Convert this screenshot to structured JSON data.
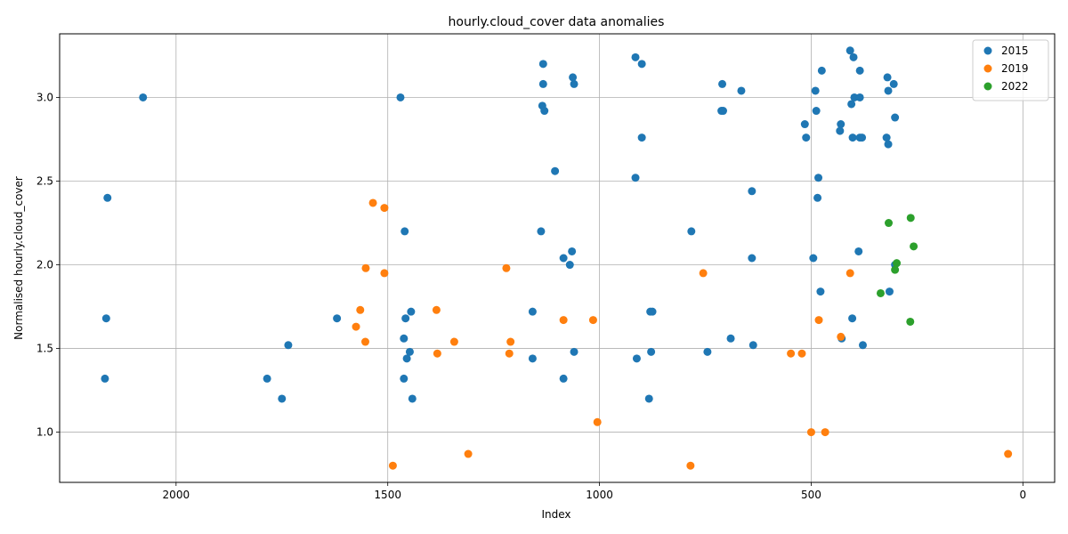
{
  "chart_data": {
    "type": "scatter",
    "title": "hourly.cloud_cover data anomalies",
    "xlabel": "Index",
    "ylabel": "Normalised hourly.cloud_cover",
    "x_inverted": true,
    "xlim": [
      2275,
      -75
    ],
    "ylim": [
      0.7,
      3.38
    ],
    "xticks": [
      2000,
      1500,
      1000,
      500,
      0
    ],
    "yticks": [
      1.0,
      1.5,
      2.0,
      2.5,
      3.0
    ],
    "ytick_labels": [
      "1.0",
      "1.5",
      "2.0",
      "2.5",
      "3.0"
    ],
    "grid": true,
    "legend_position": "top-right",
    "series": [
      {
        "name": "2015",
        "color": "#1f77b4",
        "points": [
          [
            2078,
            3.0
          ],
          [
            2162,
            2.4
          ],
          [
            2165,
            1.68
          ],
          [
            2168,
            1.32
          ],
          [
            1785,
            1.32
          ],
          [
            1750,
            1.2
          ],
          [
            1735,
            1.52
          ],
          [
            1620,
            1.68
          ],
          [
            1470,
            3.0
          ],
          [
            1460,
            2.2
          ],
          [
            1462,
            1.56
          ],
          [
            1458,
            1.68
          ],
          [
            1455,
            1.44
          ],
          [
            1448,
            1.48
          ],
          [
            1445,
            1.72
          ],
          [
            1442,
            1.2
          ],
          [
            1462,
            1.32
          ],
          [
            1133,
            3.2
          ],
          [
            1133,
            3.08
          ],
          [
            1135,
            2.95
          ],
          [
            1130,
            2.92
          ],
          [
            1105,
            2.56
          ],
          [
            1138,
            2.2
          ],
          [
            1063,
            3.12
          ],
          [
            1060,
            3.08
          ],
          [
            1065,
            2.08
          ],
          [
            1085,
            2.04
          ],
          [
            1070,
            2.0
          ],
          [
            1158,
            1.72
          ],
          [
            1158,
            1.44
          ],
          [
            1060,
            1.48
          ],
          [
            1085,
            1.32
          ],
          [
            915,
            3.24
          ],
          [
            900,
            3.2
          ],
          [
            900,
            2.76
          ],
          [
            915,
            2.52
          ],
          [
            875,
            1.72
          ],
          [
            880,
            1.72
          ],
          [
            878,
            1.48
          ],
          [
            912,
            1.44
          ],
          [
            883,
            1.2
          ],
          [
            783,
            2.2
          ],
          [
            745,
            1.48
          ],
          [
            710,
            3.08
          ],
          [
            712,
            2.92
          ],
          [
            708,
            2.92
          ],
          [
            665,
            3.04
          ],
          [
            690,
            1.56
          ],
          [
            640,
            2.44
          ],
          [
            640,
            2.04
          ],
          [
            637,
            1.52
          ],
          [
            408,
            3.28
          ],
          [
            400,
            3.24
          ],
          [
            385,
            3.16
          ],
          [
            475,
            3.16
          ],
          [
            490,
            3.04
          ],
          [
            320,
            3.12
          ],
          [
            318,
            3.04
          ],
          [
            305,
            3.08
          ],
          [
            398,
            3.0
          ],
          [
            385,
            3.0
          ],
          [
            405,
            2.96
          ],
          [
            488,
            2.92
          ],
          [
            302,
            2.88
          ],
          [
            515,
            2.84
          ],
          [
            430,
            2.84
          ],
          [
            432,
            2.8
          ],
          [
            512,
            2.76
          ],
          [
            402,
            2.76
          ],
          [
            385,
            2.76
          ],
          [
            380,
            2.76
          ],
          [
            322,
            2.76
          ],
          [
            318,
            2.72
          ],
          [
            483,
            2.52
          ],
          [
            485,
            2.4
          ],
          [
            388,
            2.08
          ],
          [
            495,
            2.04
          ],
          [
            302,
            2.0
          ],
          [
            478,
            1.84
          ],
          [
            315,
            1.84
          ],
          [
            403,
            1.68
          ],
          [
            428,
            1.56
          ],
          [
            378,
            1.52
          ]
        ]
      },
      {
        "name": "2019",
        "color": "#ff7f0e",
        "points": [
          [
            1535,
            2.37
          ],
          [
            1508,
            2.34
          ],
          [
            1552,
            1.98
          ],
          [
            1508,
            1.95
          ],
          [
            1565,
            1.73
          ],
          [
            1575,
            1.63
          ],
          [
            1553,
            1.54
          ],
          [
            1488,
            0.8
          ],
          [
            1385,
            1.73
          ],
          [
            1383,
            1.47
          ],
          [
            1343,
            1.54
          ],
          [
            1310,
            0.87
          ],
          [
            1220,
            1.98
          ],
          [
            1210,
            1.54
          ],
          [
            1213,
            1.47
          ],
          [
            1085,
            1.67
          ],
          [
            1015,
            1.67
          ],
          [
            1005,
            1.06
          ],
          [
            755,
            1.95
          ],
          [
            785,
            0.8
          ],
          [
            548,
            1.47
          ],
          [
            522,
            1.47
          ],
          [
            500,
            1.0
          ],
          [
            467,
            1.0
          ],
          [
            482,
            1.67
          ],
          [
            430,
            1.57
          ],
          [
            408,
            1.95
          ],
          [
            35,
            0.87
          ]
        ]
      },
      {
        "name": "2022",
        "color": "#2ca02c",
        "points": [
          [
            265,
            2.28
          ],
          [
            317,
            2.25
          ],
          [
            258,
            2.11
          ],
          [
            298,
            2.01
          ],
          [
            302,
            1.97
          ],
          [
            336,
            1.83
          ],
          [
            266,
            1.66
          ]
        ]
      }
    ]
  }
}
